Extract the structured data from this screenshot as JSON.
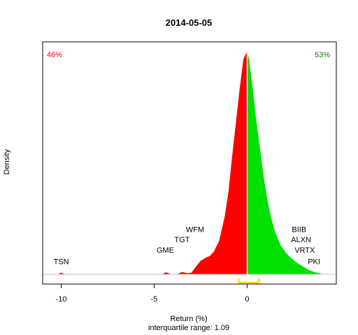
{
  "chart_data": {
    "type": "area",
    "title": "2014-05-05",
    "xlabel": "Return (%)",
    "ylabel": "Density",
    "subtitle": "interquartile range: 1.09",
    "xlim": [
      -11.0,
      4.8
    ],
    "ylim": [
      0,
      1
    ],
    "xticks": [
      -10,
      -5,
      0
    ],
    "colors": {
      "negative": "#ff0000",
      "positive": "#00e000",
      "iqr": "#ffd700"
    },
    "negative_share": "46%",
    "positive_share": "53%",
    "iqr": {
      "lower": -0.45,
      "upper": 0.64
    },
    "density_negative": [
      {
        "x": -10.2,
        "y": 0.0
      },
      {
        "x": -10.0,
        "y": 0.007
      },
      {
        "x": -9.8,
        "y": 0.0
      },
      {
        "x": -4.6,
        "y": 0.0
      },
      {
        "x": -4.35,
        "y": 0.009
      },
      {
        "x": -4.1,
        "y": 0.0
      },
      {
        "x": -3.8,
        "y": 0.0
      },
      {
        "x": -3.5,
        "y": 0.01
      },
      {
        "x": -3.2,
        "y": 0.005
      },
      {
        "x": -3.0,
        "y": 0.007
      },
      {
        "x": -2.7,
        "y": 0.04
      },
      {
        "x": -2.5,
        "y": 0.06
      },
      {
        "x": -2.2,
        "y": 0.075
      },
      {
        "x": -2.0,
        "y": 0.082
      },
      {
        "x": -1.8,
        "y": 0.1
      },
      {
        "x": -1.5,
        "y": 0.15
      },
      {
        "x": -1.2,
        "y": 0.26
      },
      {
        "x": -1.0,
        "y": 0.37
      },
      {
        "x": -0.8,
        "y": 0.53
      },
      {
        "x": -0.6,
        "y": 0.68
      },
      {
        "x": -0.4,
        "y": 0.83
      },
      {
        "x": -0.2,
        "y": 0.96
      },
      {
        "x": 0.0,
        "y": 0.995
      }
    ],
    "density_positive": [
      {
        "x": 0.0,
        "y": 0.995
      },
      {
        "x": 0.1,
        "y": 0.96
      },
      {
        "x": 0.3,
        "y": 0.83
      },
      {
        "x": 0.5,
        "y": 0.68
      },
      {
        "x": 0.7,
        "y": 0.56
      },
      {
        "x": 0.9,
        "y": 0.43
      },
      {
        "x": 1.1,
        "y": 0.33
      },
      {
        "x": 1.3,
        "y": 0.25
      },
      {
        "x": 1.5,
        "y": 0.19
      },
      {
        "x": 1.8,
        "y": 0.13
      },
      {
        "x": 2.1,
        "y": 0.095
      },
      {
        "x": 2.4,
        "y": 0.07
      },
      {
        "x": 2.7,
        "y": 0.05
      },
      {
        "x": 3.0,
        "y": 0.035
      },
      {
        "x": 3.3,
        "y": 0.02
      },
      {
        "x": 3.6,
        "y": 0.01
      },
      {
        "x": 3.9,
        "y": 0.004
      },
      {
        "x": 4.1,
        "y": 0.0
      }
    ],
    "annotations": [
      {
        "label": "TSN",
        "x": -10.0,
        "y": 0.045
      },
      {
        "label": "GME",
        "x": -4.4,
        "y": 0.097
      },
      {
        "label": "TGT",
        "x": -3.5,
        "y": 0.143
      },
      {
        "label": "WFM",
        "x": -2.8,
        "y": 0.189
      },
      {
        "label": "BIIB",
        "x": 2.8,
        "y": 0.189
      },
      {
        "label": "ALXN",
        "x": 2.9,
        "y": 0.143
      },
      {
        "label": "VRTX",
        "x": 3.1,
        "y": 0.097
      },
      {
        "label": "PKI",
        "x": 3.6,
        "y": 0.045
      }
    ]
  }
}
